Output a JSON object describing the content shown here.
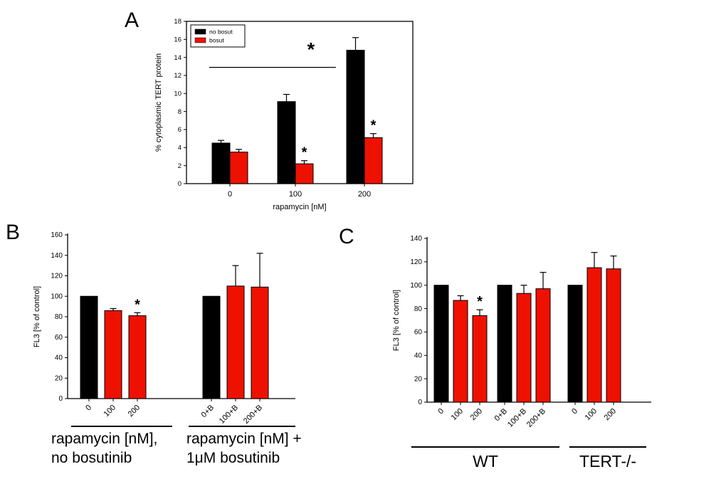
{
  "figure": {
    "background": "#ffffff",
    "panels": {
      "a_label": "A",
      "b_label": "B",
      "c_label": "C"
    }
  },
  "colors": {
    "bar_black": "#000000",
    "bar_red": "#ee1100",
    "axis": "#000000",
    "star_red": "#ee1100",
    "star_black": "#000000"
  },
  "chart_data": [
    {
      "id": "A",
      "type": "bar",
      "title": "",
      "ylabel": "% cytoplasmic TERT protein",
      "xlabel": "rapamycin [nM]",
      "ylim": [
        0,
        18
      ],
      "ytick_step": 2,
      "categories": [
        "0",
        "100",
        "200"
      ],
      "series": [
        {
          "name": "no bosut",
          "color": "#000000",
          "values": [
            4.5,
            9.1,
            14.8
          ],
          "errors": [
            0.3,
            0.8,
            1.4
          ]
        },
        {
          "name": "bosut",
          "color": "#ee1100",
          "values": [
            3.5,
            2.2,
            5.1
          ],
          "errors": [
            0.3,
            0.35,
            0.45
          ],
          "stars": [
            "",
            "*",
            "*"
          ],
          "star_color": "#ee1100"
        }
      ],
      "legend": {
        "position": "top-left",
        "entries": [
          "no bosut",
          "bosut"
        ]
      },
      "significance": {
        "star": "*",
        "x1_frac": 0.1,
        "x2_frac": 0.66,
        "y_value": 12.9,
        "star_x_frac": 0.55,
        "star_y_value": 14.8,
        "color": "#000000"
      }
    },
    {
      "id": "B",
      "type": "bar",
      "title": "",
      "ylabel": "FL3 [% of control]",
      "xlabel": "",
      "ylim": [
        0,
        160
      ],
      "ytick_step": 20,
      "groups": [
        {
          "bars": [
            {
              "label": "0",
              "value": 100,
              "error": 0,
              "color": "#000000"
            },
            {
              "label": "100",
              "value": 86,
              "error": 2,
              "color": "#ee1100"
            },
            {
              "label": "200",
              "value": 81,
              "error": 3,
              "color": "#ee1100",
              "star": "*",
              "star_color": "#000000"
            }
          ]
        },
        {
          "bars": [
            {
              "label": "0+B",
              "value": 100,
              "error": 0,
              "color": "#000000"
            },
            {
              "label": "100+B",
              "value": 110,
              "error": 20,
              "color": "#ee1100"
            },
            {
              "label": "200+B",
              "value": 109,
              "error": 33,
              "color": "#ee1100"
            }
          ]
        }
      ],
      "annotations": [
        {
          "text": "rapamycin [nM],\nno bosutinib"
        },
        {
          "text": "rapamycin [nM] +\n1μM bosutinib"
        }
      ]
    },
    {
      "id": "C",
      "type": "bar",
      "title": "",
      "ylabel": "FL3 [% of control]",
      "xlabel": "",
      "ylim": [
        0,
        140
      ],
      "ytick_step": 20,
      "groups": [
        {
          "bars": [
            {
              "label": "0",
              "value": 100,
              "error": 0,
              "color": "#000000"
            },
            {
              "label": "100",
              "value": 87,
              "error": 4,
              "color": "#ee1100"
            },
            {
              "label": "200",
              "value": 74,
              "error": 5,
              "color": "#ee1100",
              "star": "*",
              "star_color": "#000000"
            }
          ]
        },
        {
          "bars": [
            {
              "label": "0+B",
              "value": 100,
              "error": 0,
              "color": "#000000"
            },
            {
              "label": "100+B",
              "value": 93,
              "error": 7,
              "color": "#ee1100"
            },
            {
              "label": "200+B",
              "value": 97,
              "error": 14,
              "color": "#ee1100"
            }
          ]
        },
        {
          "bars": [
            {
              "label": "0",
              "value": 100,
              "error": 0,
              "color": "#000000"
            },
            {
              "label": "100",
              "value": 115,
              "error": 13,
              "color": "#ee1100"
            },
            {
              "label": "200",
              "value": 114,
              "error": 11,
              "color": "#ee1100"
            }
          ]
        }
      ],
      "annotations": [
        {
          "text": "WT"
        },
        {
          "text": "TERT-/-"
        }
      ]
    }
  ]
}
